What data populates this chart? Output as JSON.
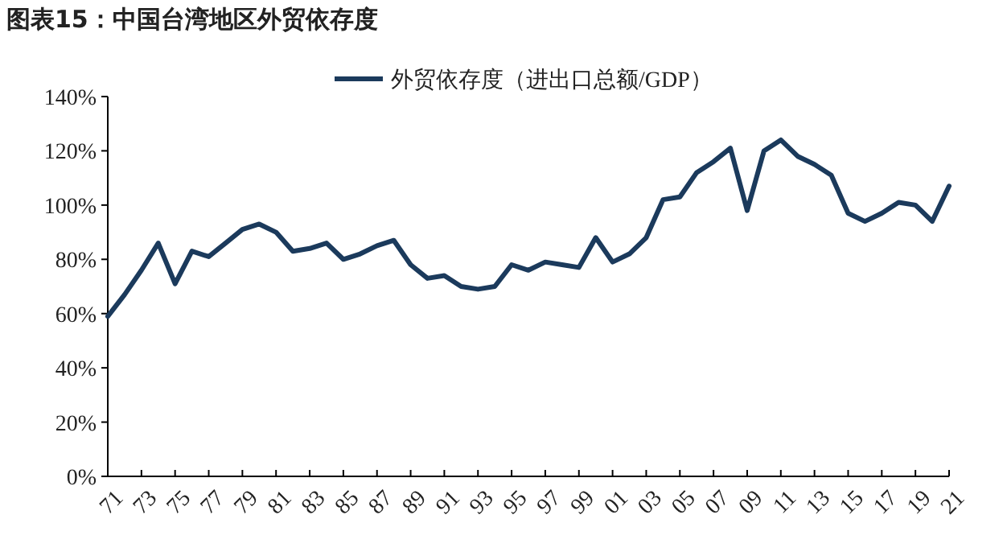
{
  "chart_data": {
    "type": "line",
    "title": "图表15：中国台湾地区外贸依存度",
    "legend": "top",
    "grid": false,
    "marker": "none",
    "line_style": "solid",
    "x": [
      1971,
      1972,
      1973,
      1974,
      1975,
      1976,
      1977,
      1978,
      1979,
      1980,
      1981,
      1982,
      1983,
      1984,
      1985,
      1986,
      1987,
      1988,
      1989,
      1990,
      1991,
      1992,
      1993,
      1994,
      1995,
      1996,
      1997,
      1998,
      1999,
      2000,
      2001,
      2002,
      2003,
      2004,
      2005,
      2006,
      2007,
      2008,
      2009,
      2010,
      2011,
      2012,
      2013,
      2014,
      2015,
      2016,
      2017,
      2018,
      2019,
      2020,
      2021
    ],
    "series": [
      {
        "name": "外贸依存度（进出口总额/GDP）",
        "color": "#1b3a5c",
        "values": [
          59,
          67,
          76,
          86,
          71,
          83,
          81,
          86,
          91,
          93,
          90,
          83,
          84,
          86,
          80,
          82,
          85,
          87,
          78,
          73,
          74,
          70,
          69,
          70,
          78,
          76,
          79,
          78,
          77,
          88,
          79,
          82,
          88,
          102,
          103,
          112,
          116,
          121,
          98,
          120,
          124,
          118,
          115,
          111,
          97,
          94,
          97,
          101,
          100,
          94,
          107
        ]
      }
    ],
    "xlim": [
      1971,
      2021
    ],
    "xticks": [
      {
        "value": 1971,
        "label": "71"
      },
      {
        "value": 1973,
        "label": "73"
      },
      {
        "value": 1975,
        "label": "75"
      },
      {
        "value": 1977,
        "label": "77"
      },
      {
        "value": 1979,
        "label": "79"
      },
      {
        "value": 1981,
        "label": "81"
      },
      {
        "value": 1983,
        "label": "83"
      },
      {
        "value": 1985,
        "label": "85"
      },
      {
        "value": 1987,
        "label": "87"
      },
      {
        "value": 1989,
        "label": "89"
      },
      {
        "value": 1991,
        "label": "91"
      },
      {
        "value": 1993,
        "label": "93"
      },
      {
        "value": 1995,
        "label": "95"
      },
      {
        "value": 1997,
        "label": "97"
      },
      {
        "value": 1999,
        "label": "99"
      },
      {
        "value": 2001,
        "label": "01"
      },
      {
        "value": 2003,
        "label": "03"
      },
      {
        "value": 2005,
        "label": "05"
      },
      {
        "value": 2007,
        "label": "07"
      },
      {
        "value": 2009,
        "label": "09"
      },
      {
        "value": 2011,
        "label": "11"
      },
      {
        "value": 2013,
        "label": "13"
      },
      {
        "value": 2015,
        "label": "15"
      },
      {
        "value": 2017,
        "label": "17"
      },
      {
        "value": 2019,
        "label": "19"
      },
      {
        "value": 2021,
        "label": "21"
      }
    ],
    "ylim": [
      0,
      140
    ],
    "yticks": [
      {
        "value": 0,
        "label": "0%"
      },
      {
        "value": 20,
        "label": "20%"
      },
      {
        "value": 40,
        "label": "40%"
      },
      {
        "value": 60,
        "label": "60%"
      },
      {
        "value": 80,
        "label": "80%"
      },
      {
        "value": 100,
        "label": "100%"
      },
      {
        "value": 120,
        "label": "120%"
      },
      {
        "value": 140,
        "label": "140%"
      }
    ]
  }
}
